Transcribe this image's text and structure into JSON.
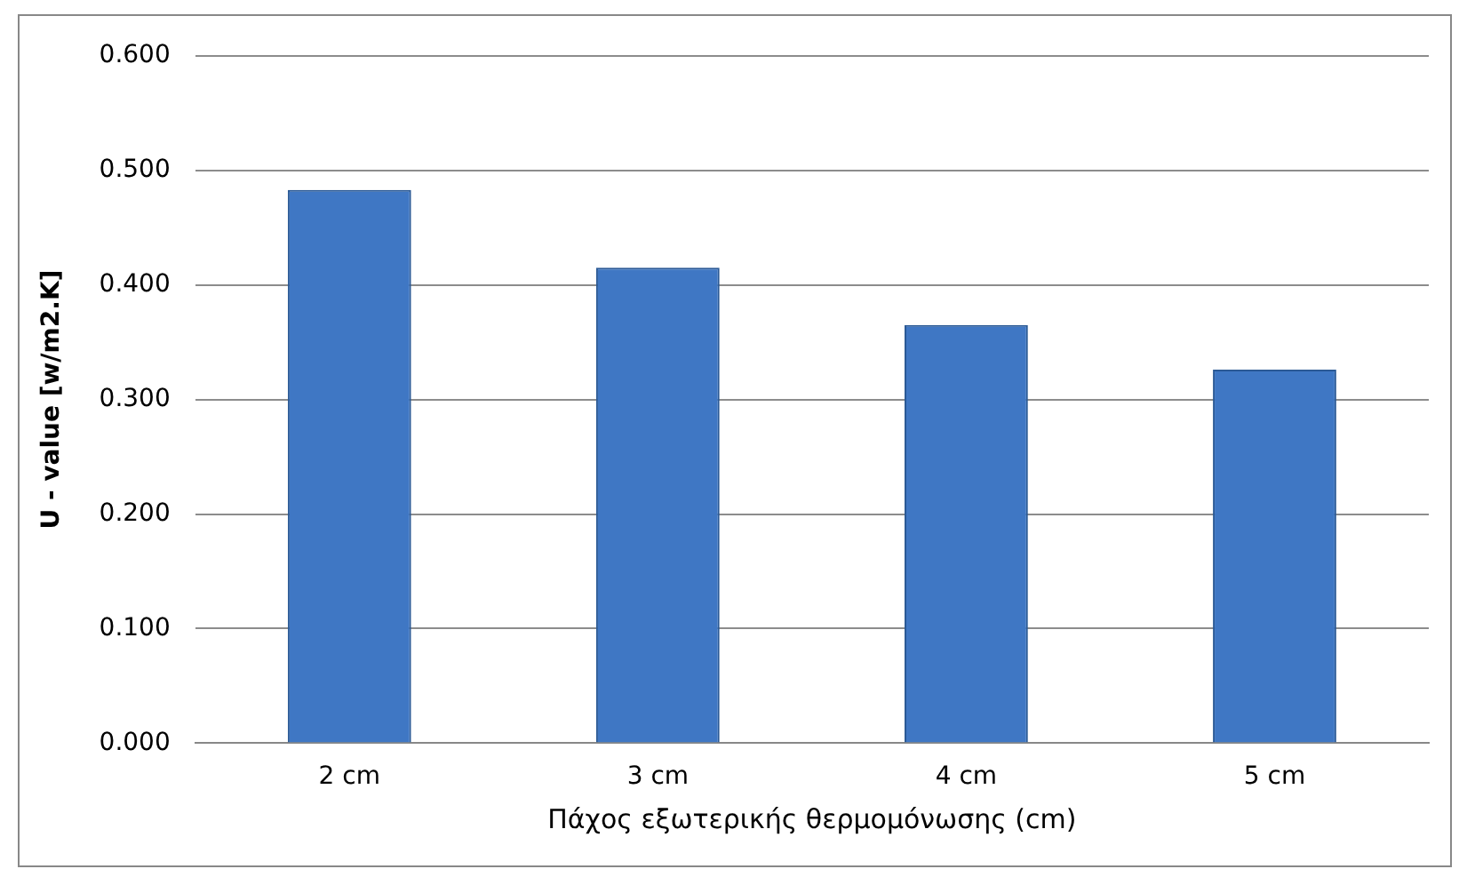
{
  "chart_data": {
    "type": "bar",
    "xlabel": "Πάχος εξωτερικής θερμομόνωσης (cm)",
    "ylabel": "U - value [w/m2.K]",
    "categories": [
      "2 cm",
      "3 cm",
      "4 cm",
      "5 cm"
    ],
    "values": [
      0.483,
      0.415,
      0.365,
      0.326
    ],
    "color": "#3f77c4",
    "ylim": [
      0,
      0.6
    ],
    "yticks": [
      {
        "value": 0,
        "label": "0.000"
      },
      {
        "value": 0.1,
        "label": "0.100"
      },
      {
        "value": 0.2,
        "label": "0.200"
      },
      {
        "value": 0.3,
        "label": "0.300"
      },
      {
        "value": 0.4,
        "label": "0.400"
      },
      {
        "value": 0.5,
        "label": "0.500"
      },
      {
        "value": 0.6,
        "label": "0.600"
      }
    ],
    "grid": "y",
    "legend": false
  }
}
